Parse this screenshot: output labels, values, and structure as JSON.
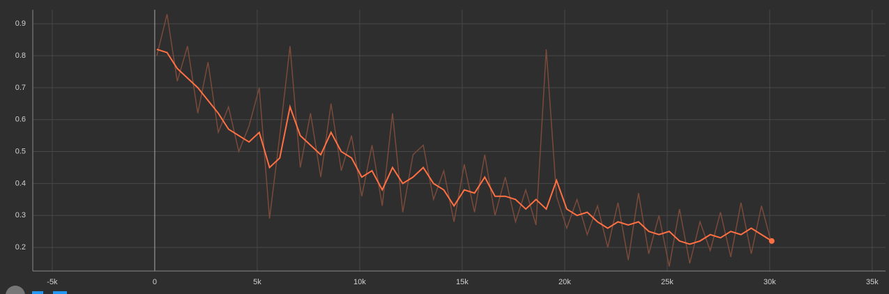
{
  "chart_data": {
    "type": "line",
    "x": [
      100,
      600,
      1100,
      1600,
      2100,
      2600,
      3100,
      3600,
      4100,
      4600,
      5100,
      5600,
      6100,
      6600,
      7100,
      7600,
      8100,
      8600,
      9100,
      9600,
      10100,
      10600,
      11100,
      11600,
      12100,
      12600,
      13100,
      13600,
      14100,
      14600,
      15100,
      15600,
      16100,
      16600,
      17100,
      17600,
      18100,
      18600,
      19100,
      19600,
      20100,
      20600,
      21100,
      21600,
      22100,
      22600,
      23100,
      23600,
      24100,
      24600,
      25100,
      25600,
      26100,
      26600,
      27100,
      27600,
      28100,
      28600,
      29100,
      29600,
      30100
    ],
    "series": [
      {
        "color": "#7a4a3a",
        "values": [
          0.8,
          0.93,
          0.72,
          0.83,
          0.62,
          0.78,
          0.56,
          0.64,
          0.5,
          0.58,
          0.7,
          0.29,
          0.55,
          0.83,
          0.45,
          0.62,
          0.42,
          0.65,
          0.44,
          0.55,
          0.36,
          0.52,
          0.33,
          0.62,
          0.31,
          0.49,
          0.52,
          0.35,
          0.44,
          0.28,
          0.46,
          0.31,
          0.49,
          0.3,
          0.42,
          0.28,
          0.38,
          0.27,
          0.82,
          0.36,
          0.26,
          0.35,
          0.24,
          0.33,
          0.2,
          0.34,
          0.16,
          0.37,
          0.18,
          0.3,
          0.14,
          0.32,
          0.15,
          0.28,
          0.19,
          0.31,
          0.17,
          0.34,
          0.18,
          0.33,
          0.21
        ]
      },
      {
        "color": "#ff7043",
        "values": [
          0.82,
          0.81,
          0.76,
          0.73,
          0.7,
          0.66,
          0.62,
          0.57,
          0.55,
          0.53,
          0.56,
          0.45,
          0.48,
          0.64,
          0.55,
          0.52,
          0.49,
          0.56,
          0.5,
          0.48,
          0.42,
          0.44,
          0.38,
          0.45,
          0.4,
          0.42,
          0.45,
          0.4,
          0.38,
          0.33,
          0.38,
          0.37,
          0.42,
          0.36,
          0.36,
          0.35,
          0.32,
          0.35,
          0.32,
          0.41,
          0.32,
          0.3,
          0.31,
          0.28,
          0.26,
          0.28,
          0.27,
          0.28,
          0.25,
          0.24,
          0.25,
          0.22,
          0.21,
          0.22,
          0.24,
          0.23,
          0.25,
          0.24,
          0.26,
          0.24,
          0.22
        ]
      }
    ],
    "xlim": [
      -5950,
      35650
    ],
    "ylim": [
      0.126,
      0.944
    ],
    "xticks": [
      {
        "value": -5000,
        "label": "-5k"
      },
      0,
      {
        "value": 5000,
        "label": "5k"
      },
      {
        "value": 10000,
        "label": "10k"
      },
      {
        "value": 15000,
        "label": "15k"
      },
      {
        "value": 20000,
        "label": "20k"
      },
      {
        "value": 25000,
        "label": "25k"
      },
      {
        "value": 30000,
        "label": "30k"
      },
      {
        "value": 35000,
        "label": "35k"
      }
    ],
    "yticks": [
      0.2,
      0.3,
      0.4,
      0.5,
      0.6,
      0.7,
      0.8,
      0.9
    ],
    "grid": true
  }
}
